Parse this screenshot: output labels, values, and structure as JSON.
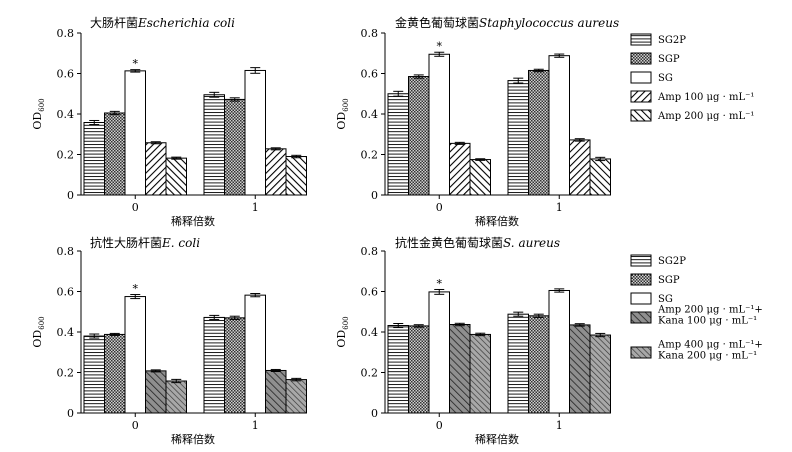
{
  "chart_data": [
    {
      "type": "bar",
      "title": "大肠杆菌Escherichia coli",
      "title_parts": {
        "cn": "大肠杆菌",
        "latin": "Escherichia coli"
      },
      "xlabel": "稀释倍数",
      "ylabel": "OD600",
      "ylabel_parts": {
        "main": "OD",
        "sub": "600"
      },
      "ylim": [
        0,
        0.8
      ],
      "yticks": [
        "0",
        "0.2",
        "0.4",
        "0.6",
        "0.8"
      ],
      "categories": [
        "0",
        "1"
      ],
      "series": [
        {
          "name": "SG2P",
          "values": [
            0.358,
            0.495
          ],
          "errors": [
            0.01,
            0.012
          ],
          "pattern": "hlines"
        },
        {
          "name": "SGP",
          "values": [
            0.405,
            0.472
          ],
          "errors": [
            0.008,
            0.008
          ],
          "pattern": "cross"
        },
        {
          "name": "SG",
          "values": [
            0.613,
            0.615
          ],
          "errors": [
            0.006,
            0.014
          ],
          "pattern": "white"
        },
        {
          "name": "Amp 100 μg·mL⁻¹",
          "values": [
            0.258,
            0.228
          ],
          "errors": [
            0.005,
            0.005
          ],
          "pattern": "diagdown"
        },
        {
          "name": "Amp 200 μg·mL⁻¹",
          "values": [
            0.182,
            0.19
          ],
          "errors": [
            0.005,
            0.006
          ],
          "pattern": "diagup"
        }
      ],
      "significance": [
        {
          "category": "0",
          "series": "SG",
          "mark": "*"
        }
      ]
    },
    {
      "type": "bar",
      "title": "金黄色葡萄球菌Staphylococcus aureus",
      "title_parts": {
        "cn": "金黄色葡萄球菌",
        "latin": "Staphylococcus aureus"
      },
      "xlabel": "稀释倍数",
      "ylabel": "OD600",
      "ylabel_parts": {
        "main": "OD",
        "sub": "600"
      },
      "ylim": [
        0,
        0.8
      ],
      "yticks": [
        "0",
        "0.2",
        "0.4",
        "0.6",
        "0.8"
      ],
      "categories": [
        "0",
        "1"
      ],
      "series": [
        {
          "name": "SG2P",
          "values": [
            0.5,
            0.565
          ],
          "errors": [
            0.012,
            0.012
          ],
          "pattern": "hlines"
        },
        {
          "name": "SGP",
          "values": [
            0.585,
            0.615
          ],
          "errors": [
            0.008,
            0.006
          ],
          "pattern": "cross"
        },
        {
          "name": "SG",
          "values": [
            0.695,
            0.688
          ],
          "errors": [
            0.01,
            0.008
          ],
          "pattern": "white"
        },
        {
          "name": "Amp 100 μg·mL⁻¹",
          "values": [
            0.255,
            0.272
          ],
          "errors": [
            0.005,
            0.006
          ],
          "pattern": "diagdown"
        },
        {
          "name": "Amp 200 μg·mL⁻¹",
          "values": [
            0.175,
            0.178
          ],
          "errors": [
            0.004,
            0.008
          ],
          "pattern": "diagup"
        }
      ],
      "significance": [
        {
          "category": "0",
          "series": "SG",
          "mark": "*"
        }
      ],
      "legend": {
        "position": "right",
        "entries": [
          {
            "pattern": "hlines",
            "lines": [
              "SG2P"
            ]
          },
          {
            "pattern": "cross",
            "lines": [
              "SGP"
            ]
          },
          {
            "pattern": "white",
            "lines": [
              "SG"
            ]
          },
          {
            "pattern": "diagdown",
            "lines": [
              "Amp 100 μg · mL⁻¹"
            ]
          },
          {
            "pattern": "diagup",
            "lines": [
              "Amp 200 μg · mL⁻¹"
            ]
          }
        ]
      }
    },
    {
      "type": "bar",
      "title": "抗性大肠杆菌E. coli",
      "title_parts": {
        "cn": "抗性大肠杆菌",
        "latin": "E. coli"
      },
      "xlabel": "稀释倍数",
      "ylabel": "OD600",
      "ylabel_parts": {
        "main": "OD",
        "sub": "600"
      },
      "ylim": [
        0,
        0.8
      ],
      "yticks": [
        "0",
        "0.2",
        "0.4",
        "0.6",
        "0.8"
      ],
      "categories": [
        "0",
        "1"
      ],
      "series": [
        {
          "name": "SG2P",
          "values": [
            0.38,
            0.472
          ],
          "errors": [
            0.01,
            0.01
          ],
          "pattern": "hlines"
        },
        {
          "name": "SGP",
          "values": [
            0.388,
            0.47
          ],
          "errors": [
            0.005,
            0.008
          ],
          "pattern": "cross"
        },
        {
          "name": "SG",
          "values": [
            0.575,
            0.582
          ],
          "errors": [
            0.01,
            0.008
          ],
          "pattern": "white"
        },
        {
          "name": "Amp 200 μg·mL⁻¹+Kana 100 μg·mL⁻¹",
          "values": [
            0.208,
            0.21
          ],
          "errors": [
            0.005,
            0.005
          ],
          "pattern": "graydiag"
        },
        {
          "name": "Amp 400 μg·mL⁻¹+Kana 200 μg·mL⁻¹",
          "values": [
            0.158,
            0.165
          ],
          "errors": [
            0.008,
            0.006
          ],
          "pattern": "graydiagdense"
        }
      ],
      "significance": [
        {
          "category": "0",
          "series": "SG",
          "mark": "*"
        }
      ]
    },
    {
      "type": "bar",
      "title": "抗性金黄色葡萄球菌S. aureus",
      "title_parts": {
        "cn": "抗性金黄色葡萄球菌",
        "latin": "S. aureus"
      },
      "xlabel": "稀释倍数",
      "ylabel": "OD600",
      "ylabel_parts": {
        "main": "OD",
        "sub": "600"
      },
      "ylim": [
        0,
        0.8
      ],
      "yticks": [
        "0",
        "0.2",
        "0.4",
        "0.6",
        "0.8"
      ],
      "categories": [
        "0",
        "1"
      ],
      "series": [
        {
          "name": "SG2P",
          "values": [
            0.432,
            0.488
          ],
          "errors": [
            0.01,
            0.01
          ],
          "pattern": "hlines"
        },
        {
          "name": "SGP",
          "values": [
            0.43,
            0.48
          ],
          "errors": [
            0.006,
            0.008
          ],
          "pattern": "cross"
        },
        {
          "name": "SG",
          "values": [
            0.598,
            0.605
          ],
          "errors": [
            0.012,
            0.008
          ],
          "pattern": "white"
        },
        {
          "name": "Amp 200 μg·mL⁻¹+Kana 100 μg·mL⁻¹",
          "values": [
            0.437,
            0.435
          ],
          "errors": [
            0.006,
            0.006
          ],
          "pattern": "graydiag"
        },
        {
          "name": "Amp 400 μg·mL⁻¹+Kana 200 μg·mL⁻¹",
          "values": [
            0.388,
            0.385
          ],
          "errors": [
            0.006,
            0.008
          ],
          "pattern": "graydiagdense"
        }
      ],
      "significance": [
        {
          "category": "0",
          "series": "SG",
          "mark": "*"
        }
      ],
      "legend": {
        "position": "right",
        "entries": [
          {
            "pattern": "hlines",
            "lines": [
              "SG2P"
            ]
          },
          {
            "pattern": "cross",
            "lines": [
              "SGP"
            ]
          },
          {
            "pattern": "white",
            "lines": [
              "SG"
            ]
          },
          {
            "pattern": "graydiag",
            "lines": [
              "Amp 200 μg · mL⁻¹+",
              "Kana 100 μg · mL⁻¹"
            ]
          },
          {
            "pattern": "graydiagdense",
            "lines": [
              "Amp 400 μg · mL⁻¹+",
              "Kana 200 μg · mL⁻¹"
            ]
          }
        ]
      }
    }
  ]
}
